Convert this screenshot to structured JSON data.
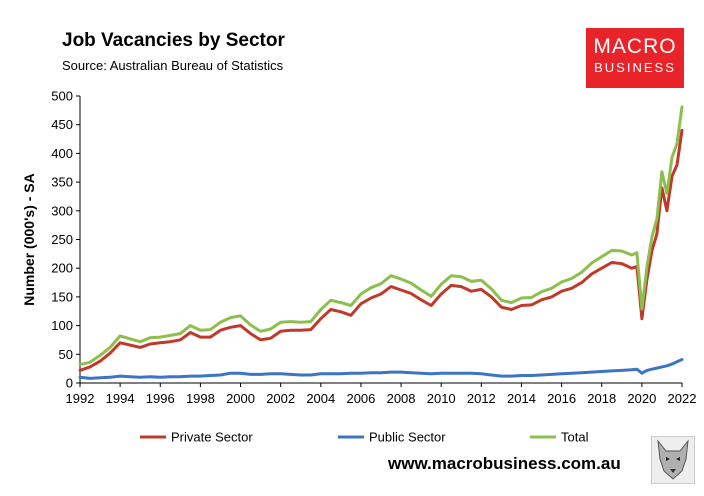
{
  "header": {
    "title": "Job Vacancies by Sector",
    "subtitle": "Source: Australian Bureau of Statistics"
  },
  "logo": {
    "line1": "MACRO",
    "line2": "BUSINESS",
    "color": "#e8232a"
  },
  "footer": {
    "url": "www.macrobusiness.com.au",
    "badge_icon": "wolf-icon"
  },
  "chart_data": {
    "type": "line",
    "title": "Job Vacancies by Sector",
    "xlabel": "",
    "ylabel": "Number (000's) - SA",
    "xlim": [
      1992,
      2022
    ],
    "ylim": [
      0,
      500
    ],
    "x_ticks": [
      "1992",
      "1994",
      "1996",
      "1998",
      "2000",
      "2002",
      "2004",
      "2006",
      "2008",
      "2010",
      "2012",
      "2014",
      "2016",
      "2018",
      "2020",
      "2022"
    ],
    "y_ticks": [
      "0",
      "50",
      "100",
      "150",
      "200",
      "250",
      "300",
      "350",
      "400",
      "450",
      "500"
    ],
    "grid": false,
    "legend": "bottom",
    "x": [
      1992.0,
      1992.5,
      1993.0,
      1993.5,
      1994.0,
      1994.5,
      1995.0,
      1995.5,
      1996.0,
      1996.5,
      1997.0,
      1997.5,
      1998.0,
      1998.5,
      1999.0,
      1999.5,
      2000.0,
      2000.5,
      2001.0,
      2001.5,
      2002.0,
      2002.5,
      2003.0,
      2003.5,
      2004.0,
      2004.5,
      2005.0,
      2005.5,
      2006.0,
      2006.5,
      2007.0,
      2007.5,
      2008.0,
      2008.5,
      2009.0,
      2009.5,
      2010.0,
      2010.5,
      2011.0,
      2011.5,
      2012.0,
      2012.5,
      2013.0,
      2013.5,
      2014.0,
      2014.5,
      2015.0,
      2015.5,
      2016.0,
      2016.5,
      2017.0,
      2017.5,
      2018.0,
      2018.5,
      2019.0,
      2019.5,
      2019.75,
      2020.0,
      2020.25,
      2020.5,
      2020.75,
      2021.0,
      2021.25,
      2021.5,
      2021.75,
      2022.0
    ],
    "series": [
      {
        "name": "Private Sector",
        "color": "#c0392b",
        "values": [
          22,
          28,
          38,
          52,
          70,
          66,
          62,
          68,
          70,
          72,
          75,
          88,
          80,
          80,
          92,
          97,
          100,
          86,
          75,
          78,
          90,
          92,
          92,
          93,
          112,
          128,
          124,
          118,
          138,
          148,
          155,
          168,
          162,
          156,
          145,
          135,
          155,
          170,
          168,
          160,
          163,
          150,
          132,
          128,
          135,
          136,
          145,
          150,
          160,
          165,
          175,
          190,
          200,
          210,
          208,
          200,
          203,
          112,
          180,
          230,
          260,
          340,
          300,
          360,
          380,
          440
        ]
      },
      {
        "name": "Public Sector",
        "color": "#3b75c4",
        "values": [
          10,
          8,
          9,
          10,
          12,
          11,
          10,
          11,
          10,
          11,
          11,
          12,
          12,
          13,
          14,
          17,
          17,
          15,
          15,
          16,
          16,
          15,
          14,
          14,
          16,
          16,
          16,
          17,
          17,
          18,
          18,
          19,
          19,
          18,
          17,
          16,
          17,
          17,
          17,
          17,
          16,
          14,
          12,
          12,
          13,
          13,
          14,
          15,
          16,
          17,
          18,
          19,
          20,
          21,
          22,
          23,
          24,
          17,
          22,
          24,
          26,
          28,
          30,
          33,
          37,
          41
        ]
      },
      {
        "name": "Total",
        "color": "#8cbf4c",
        "values": [
          32,
          36,
          48,
          62,
          82,
          77,
          72,
          79,
          80,
          83,
          86,
          100,
          92,
          93,
          106,
          114,
          117,
          101,
          90,
          94,
          106,
          107,
          106,
          107,
          128,
          144,
          140,
          135,
          155,
          166,
          173,
          187,
          181,
          174,
          162,
          151,
          172,
          187,
          185,
          177,
          179,
          164,
          144,
          140,
          148,
          149,
          159,
          165,
          176,
          182,
          193,
          209,
          220,
          231,
          230,
          223,
          227,
          129,
          202,
          254,
          286,
          368,
          330,
          393,
          417,
          481
        ]
      }
    ]
  }
}
